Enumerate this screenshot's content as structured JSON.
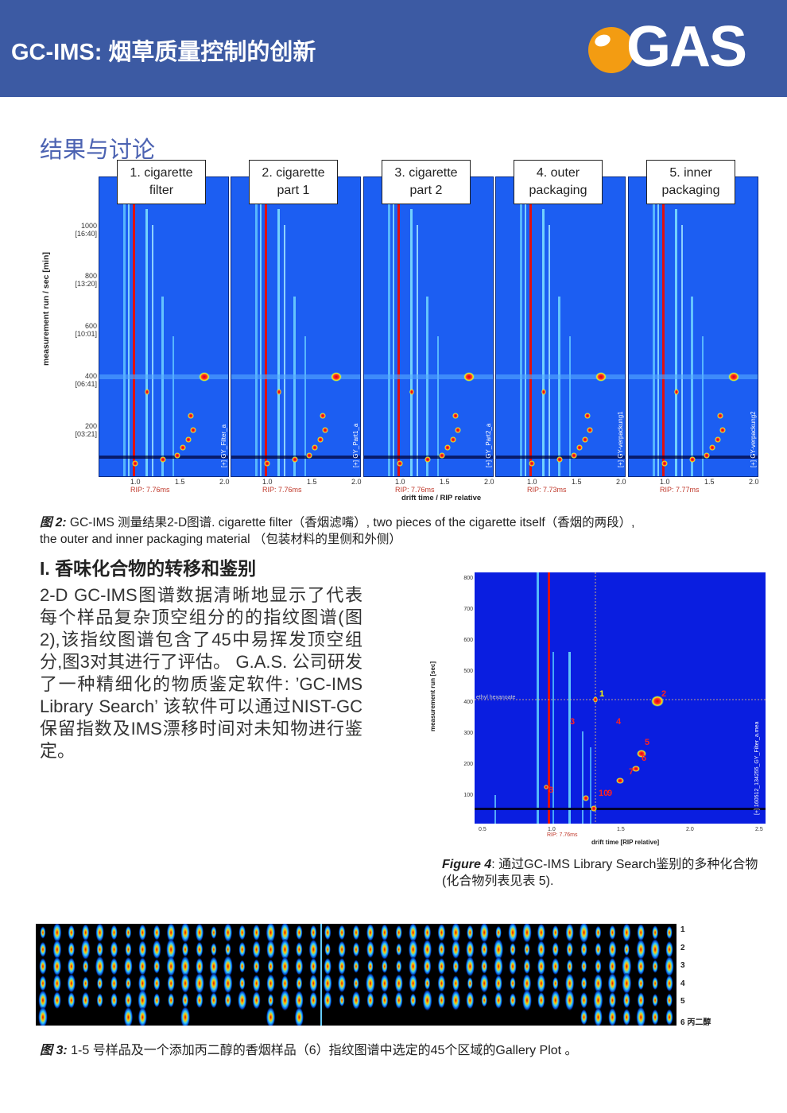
{
  "header": {
    "title": "GC-IMS: 烟草质量控制的创新",
    "logo_text": "GAS"
  },
  "section_title": "结果与讨论",
  "figure2": {
    "panels": [
      {
        "label_line1": "1. cigarette",
        "label_line2": "filter",
        "side": "[+] GY_Filter_a",
        "rip": "RIP: 7.76ms"
      },
      {
        "label_line1": "2. cigarette",
        "label_line2": "part 1",
        "side": "[+] GY_Part1_a",
        "rip": "RIP: 7.76ms"
      },
      {
        "label_line1": "3. cigarette",
        "label_line2": "part 2",
        "side": "[+] GY_Part2_a",
        "rip": "RIP: 7.76ms"
      },
      {
        "label_line1": "4. outer",
        "label_line2": "packaging",
        "side": "[+] GY-verpackung1",
        "rip": "RIP: 7.73ms"
      },
      {
        "label_line1": "5. inner",
        "label_line2": "packaging",
        "side": "[+] GY-verpackung2",
        "rip": "RIP: 7.77ms"
      }
    ],
    "y_axis_label": "measurement run / sec [min]",
    "y_ticks": [
      {
        "v": "1000",
        "t": "[16:40]"
      },
      {
        "v": "800",
        "t": "[13:20]"
      },
      {
        "v": "600",
        "t": "[10:01]"
      },
      {
        "v": "400",
        "t": "[06:41]"
      },
      {
        "v": "200",
        "t": "[03:21]"
      }
    ],
    "x_ticks": [
      "1.0",
      "1.5",
      "2.0"
    ],
    "x_axis_label": "drift time / RIP relative",
    "caption_prefix": "图 2:",
    "caption_line1": "GC-IMS 测量结果2-D图谱. cigarette filter（香烟滤嘴）, two pieces of the cigarette itself（香烟的两段）,",
    "caption_line2": "the outer and inner packaging material （包装材料的里侧和外侧）"
  },
  "subheading": "I.  香味化合物的转移和鉴别",
  "paragraph": "2-D  GC-IMS图谱数据清晰地显示了代表每个样品复杂顶空组分的的指纹图谱(图2),该指纹图谱包含了45中易挥发顶空组分,图3对其进行了评估。 G.A.S. 公司研发了一种精细化的物质鉴定软件: ’GC-IMS Library Search’ 该软件可以通过NIST-GC保留指数及IMS漂移时间对未知物进行鉴定。",
  "figure4": {
    "y_axis_label": "measurement run [sec]",
    "y_ticks": [
      "800",
      "700",
      "600",
      "500",
      "400",
      "300",
      "200",
      "100"
    ],
    "x_ticks": [
      "0.5",
      "1.0",
      "1.5",
      "2.0",
      "2.5"
    ],
    "x_axis_label": "drift time [RIP relative]",
    "rip": "RIP: 7.76ms",
    "marker_label": "ethyl hexanoate",
    "side": "[+] 160512_134255_GY_Filter_a.mea",
    "peak_labels": [
      "1",
      "2",
      "3",
      "4",
      "5",
      "6",
      "7",
      "8",
      "9",
      "10"
    ],
    "caption_prefix": "Figure 4",
    "caption": ": 通过GC-IMS Library Search鉴别的多种化合物(化合物列表见表 5)."
  },
  "figure3": {
    "row_labels": [
      "1",
      "2",
      "3",
      "4",
      "5",
      "6 丙二醇"
    ],
    "caption_prefix": "图 3:",
    "caption": " 1-5 号样品及一个添加丙二醇的香烟样品（6）指纹图谱中选定的45个区域的Gallery Plot 。"
  }
}
